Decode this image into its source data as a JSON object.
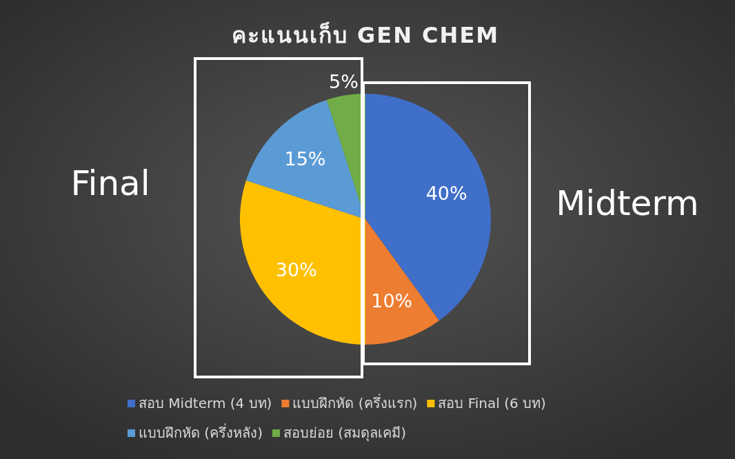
{
  "chart_data": {
    "type": "pie",
    "title": "คะแนนเก็บ GEN CHEM",
    "categories": [
      "สอบ Midterm (4 บท)",
      "แบบฝึกหัด (ครึ่งแรก)",
      "สอบ Final (6 บท)",
      "แบบฝึกหัด (ครึ่งหลัง)",
      "สอบย่อย (สมดุลเคมี)"
    ],
    "values": [
      40,
      10,
      30,
      15,
      5
    ],
    "colors": [
      "#3f6fc9",
      "#ed7d31",
      "#ffc000",
      "#5b9bd5",
      "#70ad47"
    ],
    "value_labels": [
      "40%",
      "10%",
      "30%",
      "15%",
      "5%"
    ],
    "legend": "bottom",
    "annotations": [
      "Final",
      "Midterm"
    ]
  }
}
